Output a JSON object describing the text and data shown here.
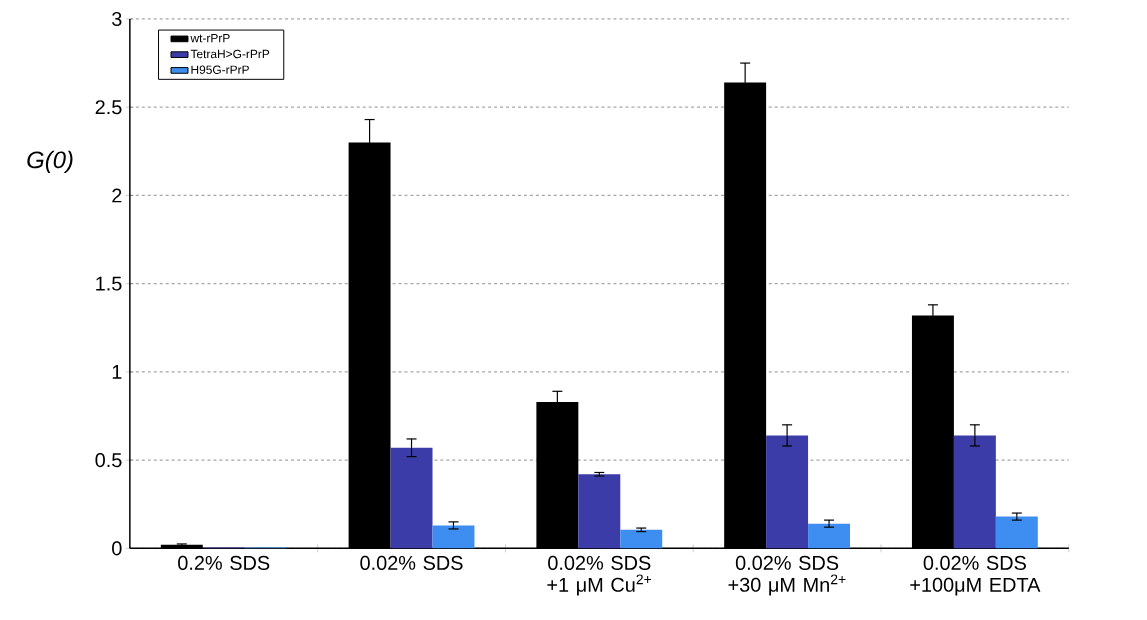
{
  "chart_data": {
    "type": "bar",
    "ylabel": "*G(0)*",
    "categories": [
      "0.2% SDS",
      "0.02% SDS",
      "0.02% SDS +1 μM Cu$^{2+}$",
      "0.02% SDS +30 μM Mn$^{2+}$",
      "0.02% SDS +100μM EDTA"
    ],
    "series": [
      {
        "name": "wt-rPrP",
        "color": "#000000",
        "values": [
          0.02,
          2.3,
          0.83,
          2.64,
          1.32
        ],
        "errors": [
          0.005,
          0.13,
          0.06,
          0.11,
          0.06
        ]
      },
      {
        "name": "TetraH>G-rPrP",
        "color": "#3c3ca8",
        "values": [
          0.005,
          0.57,
          0.42,
          0.64,
          0.64
        ],
        "errors": [
          null,
          0.05,
          0.01,
          0.06,
          0.06
        ]
      },
      {
        "name": "H95G-rPrP",
        "color": "#3d8ef0",
        "values": [
          0.005,
          0.13,
          0.105,
          0.14,
          0.18
        ],
        "errors": [
          null,
          0.02,
          0.01,
          0.02,
          0.02
        ]
      }
    ],
    "ylim": [
      0,
      3
    ],
    "yticks": [
      0,
      0.5,
      1,
      1.5,
      2,
      2.5,
      3
    ],
    "grid": "y",
    "legend": "top left"
  }
}
